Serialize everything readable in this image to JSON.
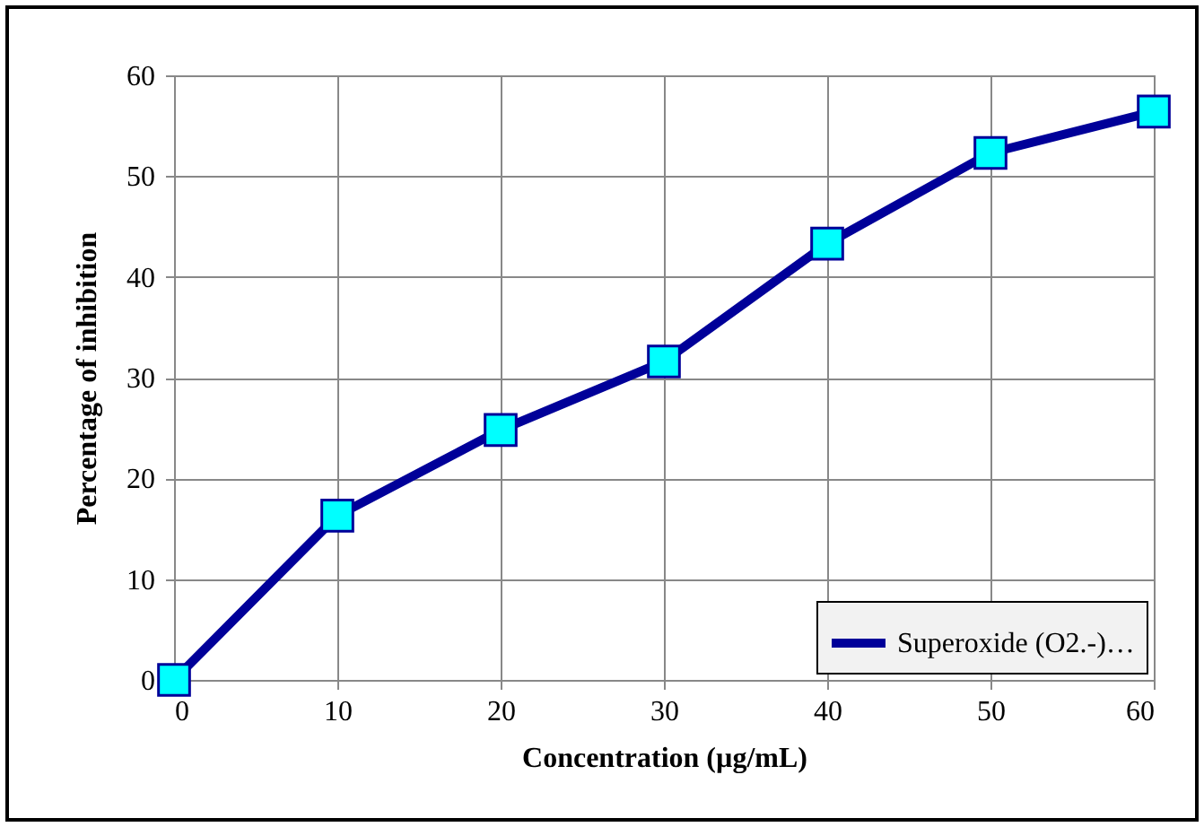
{
  "chart_data": {
    "type": "line",
    "xlabel": "Concentration (µg/mL)",
    "ylabel": "Percentage of inhibition",
    "x": [
      0,
      10,
      20,
      30,
      40,
      50,
      60
    ],
    "series": [
      {
        "name": "Superoxide (O2.-)…",
        "color": "#000099",
        "values": [
          0,
          16.3,
          24.8,
          31.6,
          43.3,
          52.3,
          56.4
        ]
      }
    ],
    "xlim": [
      0,
      60
    ],
    "xticks": [
      0,
      10,
      20,
      30,
      40,
      50,
      60
    ],
    "ylim": [
      0,
      60
    ],
    "yticks": [
      0,
      10,
      20,
      30,
      40,
      50,
      60
    ],
    "grid": true,
    "legend": "bottom right",
    "marker": "square",
    "line_style": "solid"
  }
}
